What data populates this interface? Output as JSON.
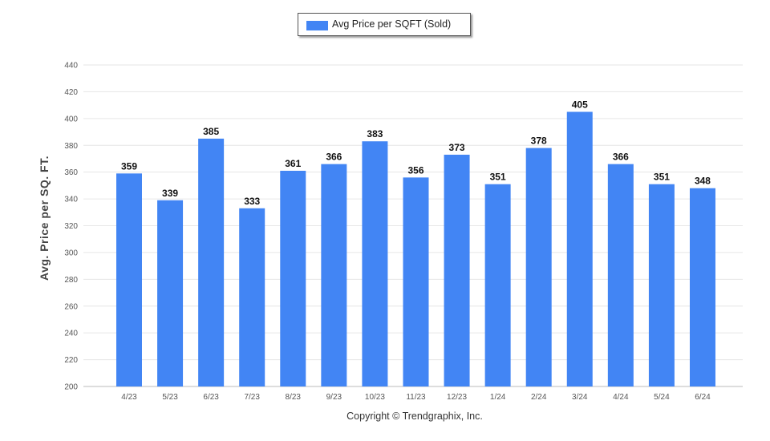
{
  "chart_data": {
    "type": "bar",
    "title": "",
    "xlabel": "",
    "ylabel": "Avg. Price per SQ. FT.",
    "ylim": [
      200,
      440
    ],
    "yticks": [
      200,
      220,
      240,
      260,
      280,
      300,
      320,
      340,
      360,
      380,
      400,
      420,
      440
    ],
    "grid": true,
    "legend_position": "top-center",
    "categories": [
      "4/23",
      "5/23",
      "6/23",
      "7/23",
      "8/23",
      "9/23",
      "10/23",
      "11/23",
      "12/23",
      "1/24",
      "2/24",
      "3/24",
      "4/24",
      "5/24",
      "6/24"
    ],
    "series": [
      {
        "name": "Avg Price per SQFT (Sold)",
        "color": "#4285f4",
        "values": [
          359,
          339,
          385,
          333,
          361,
          366,
          383,
          356,
          373,
          351,
          378,
          405,
          366,
          351,
          348
        ]
      }
    ]
  },
  "footer": {
    "copyright": "Copyright © Trendgraphix, Inc."
  }
}
